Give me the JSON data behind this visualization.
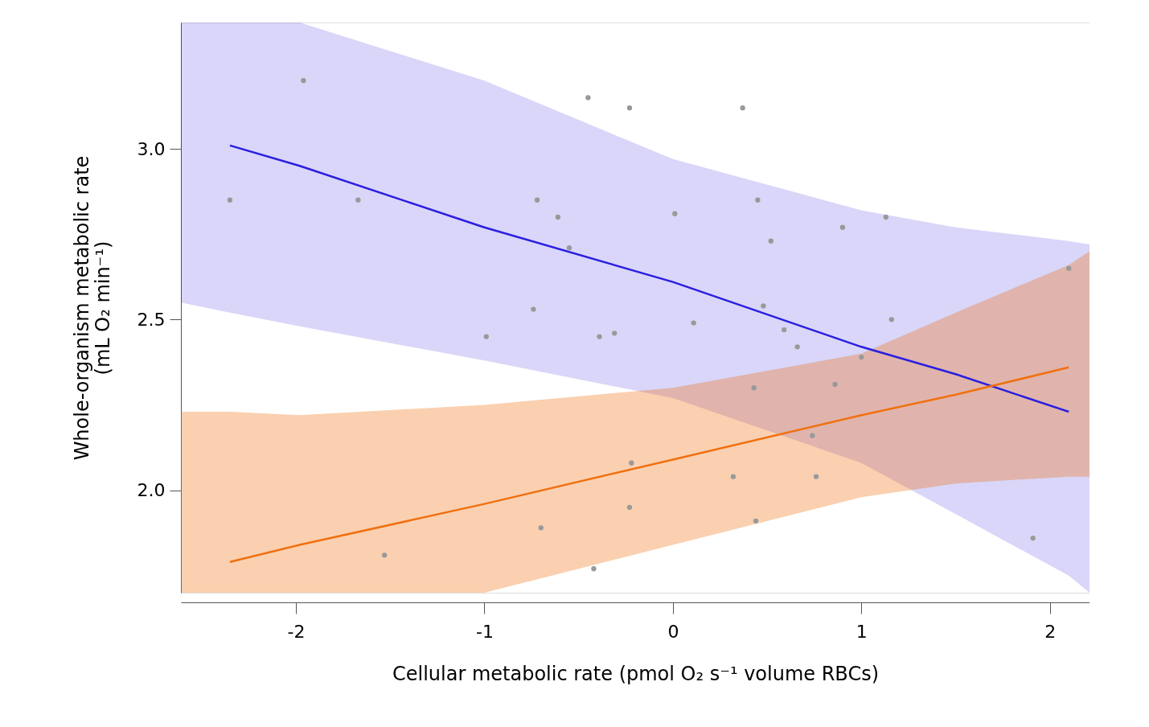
{
  "chart_data": {
    "type": "scatter",
    "xlabel": "Cellular metabolic rate (pmol O₂ s⁻¹ volume RBCs)",
    "ylabel": "Whole-organism metabolic rate\n(mL O₂ min⁻¹)",
    "xlim": [
      -2.61,
      2.21
    ],
    "ylim": [
      1.7,
      3.37
    ],
    "xticks": [
      {
        "value": -2,
        "label": "-2"
      },
      {
        "value": -1,
        "label": "-1"
      },
      {
        "value": 0,
        "label": "0"
      },
      {
        "value": 1,
        "label": "1"
      },
      {
        "value": 2,
        "label": "2"
      }
    ],
    "yticks": [
      {
        "value": 2.0,
        "label": "2.0"
      },
      {
        "value": 2.5,
        "label": "2.5"
      },
      {
        "value": 3.0,
        "label": "3.0"
      }
    ],
    "grid": false,
    "series": [
      {
        "type": "line",
        "color": "#2a1ee0",
        "x": [
          -2.61,
          -2.35,
          -1.98,
          -1,
          0,
          1,
          1.5,
          2.1,
          2.21
        ],
        "values": [
          null,
          3.01,
          2.95,
          2.77,
          2.61,
          2.42,
          2.34,
          2.23,
          null
        ],
        "lower": [
          2.55,
          2.52,
          2.48,
          2.38,
          2.27,
          2.08,
          1.93,
          1.75,
          1.7
        ],
        "upper": [
          3.37,
          3.37,
          3.37,
          3.2,
          2.97,
          2.82,
          2.77,
          2.73,
          2.72
        ]
      },
      {
        "type": "line",
        "color": "#f07010",
        "x": [
          -2.61,
          -2.35,
          -1.98,
          -1,
          0,
          1,
          1.5,
          2.1,
          2.21
        ],
        "values": [
          null,
          1.79,
          1.84,
          1.96,
          2.09,
          2.22,
          2.28,
          2.36,
          null
        ],
        "lower": [
          1.7,
          1.7,
          1.7,
          1.7,
          1.84,
          1.98,
          2.02,
          2.04,
          2.04
        ],
        "upper": [
          2.23,
          2.23,
          2.22,
          2.25,
          2.3,
          2.4,
          2.52,
          2.66,
          2.7
        ]
      },
      {
        "color": "#999999",
        "x": [
          -1.96,
          -2.35,
          -1.67,
          -0.72,
          -0.61,
          -0.55,
          -0.45,
          -0.23,
          0.37,
          0.01,
          0.45,
          0.52,
          0.9,
          1.13,
          -0.99,
          -0.74,
          -0.39,
          -0.31,
          0.11,
          0.48,
          0.59,
          0.66,
          1.16,
          1.0,
          0.43,
          0.86,
          0.74,
          -0.22,
          0.32,
          0.76,
          -0.23,
          -0.7,
          0.44,
          -1.53,
          -0.42,
          1.91,
          2.1
        ],
        "values": [
          3.2,
          2.85,
          2.85,
          2.85,
          2.8,
          2.71,
          3.15,
          3.12,
          3.12,
          2.81,
          2.85,
          2.73,
          2.77,
          2.8,
          2.45,
          2.53,
          2.45,
          2.46,
          2.49,
          2.54,
          2.47,
          2.42,
          2.5,
          2.39,
          2.3,
          2.31,
          2.16,
          2.08,
          2.04,
          2.04,
          1.95,
          1.89,
          1.91,
          1.81,
          1.77,
          1.86,
          2.65
        ]
      }
    ]
  }
}
